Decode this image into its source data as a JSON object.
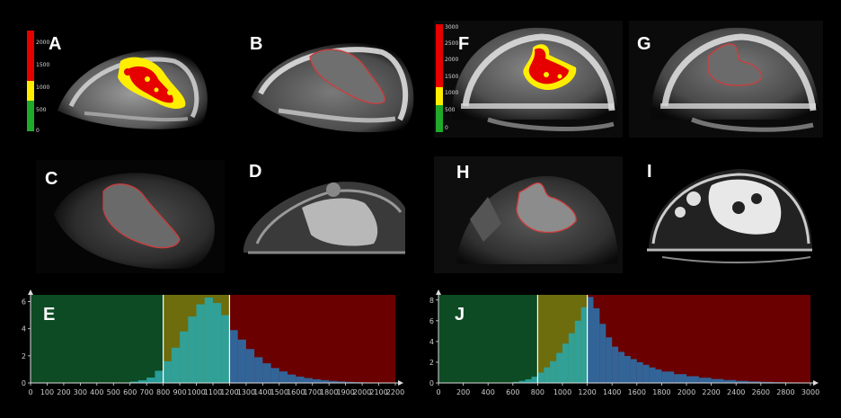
{
  "panels": {
    "A": "A",
    "B": "B",
    "C": "C",
    "D": "D",
    "E": "E",
    "F": "F",
    "G": "G",
    "H": "H",
    "I": "I",
    "J": "J"
  },
  "colors": {
    "red": "#e60000",
    "yellow": "#ffee00",
    "green": "#1faa2a",
    "contour": "#d23a3a",
    "hist_green_region": "#0c4b23",
    "hist_yellow_region": "#6d6d0e",
    "hist_red_region": "#6a0000",
    "hist_bar_teal": "#2aa5a5",
    "hist_bar_blue": "#2e6fa8"
  },
  "scale_left": {
    "ticks": [
      "2000",
      "1500",
      "1000",
      "500",
      "0"
    ]
  },
  "scale_right": {
    "ticks": [
      "3000",
      "2500",
      "2000",
      "1500",
      "1000",
      "500",
      "0"
    ]
  },
  "chart_data": [
    {
      "type": "bar",
      "panel": "E",
      "x_ticks": [
        "0",
        "100",
        "200",
        "300",
        "400",
        "500",
        "600",
        "700",
        "800",
        "900",
        "1000",
        "1100",
        "1200",
        "1300",
        "1400",
        "1500",
        "1600",
        "1700",
        "1800",
        "1900",
        "2000",
        "2100",
        "2200"
      ],
      "y_ticks": [
        "0",
        "2",
        "4",
        "6"
      ],
      "xlim": [
        0,
        2200
      ],
      "ylim": [
        0,
        6.5
      ],
      "thresholds": [
        800,
        1200
      ],
      "x": [
        600,
        650,
        700,
        750,
        800,
        850,
        900,
        950,
        1000,
        1050,
        1100,
        1150,
        1200,
        1250,
        1300,
        1350,
        1400,
        1450,
        1500,
        1550,
        1600,
        1650,
        1700,
        1750,
        1800,
        1850,
        1900,
        1950,
        2000,
        2050,
        2100,
        2150
      ],
      "values": [
        0.1,
        0.2,
        0.4,
        0.9,
        1.6,
        2.6,
        3.8,
        4.9,
        5.8,
        6.3,
        5.9,
        5.0,
        3.9,
        3.2,
        2.5,
        1.9,
        1.45,
        1.1,
        0.85,
        0.62,
        0.47,
        0.36,
        0.27,
        0.2,
        0.15,
        0.11,
        0.08,
        0.06,
        0.04,
        0.03,
        0.02,
        0.01
      ]
    },
    {
      "type": "bar",
      "panel": "J",
      "x_ticks": [
        "0",
        "200",
        "400",
        "600",
        "800",
        "1000",
        "1200",
        "1400",
        "1600",
        "1800",
        "2000",
        "2200",
        "2400",
        "2600",
        "2800",
        "3000"
      ],
      "y_ticks": [
        "0",
        "2",
        "4",
        "6",
        "8"
      ],
      "xlim": [
        0,
        3000
      ],
      "ylim": [
        0,
        8.5
      ],
      "thresholds": [
        800,
        1200
      ],
      "x": [
        600,
        650,
        700,
        750,
        800,
        850,
        900,
        950,
        1000,
        1050,
        1100,
        1150,
        1200,
        1250,
        1300,
        1350,
        1400,
        1450,
        1500,
        1550,
        1600,
        1650,
        1700,
        1750,
        1800,
        1900,
        2000,
        2100,
        2200,
        2300,
        2400,
        2500,
        2600,
        2700,
        2800,
        2900
      ],
      "values": [
        0.1,
        0.2,
        0.35,
        0.6,
        1.0,
        1.5,
        2.1,
        2.9,
        3.8,
        4.8,
        6.0,
        7.3,
        8.3,
        7.2,
        5.7,
        4.4,
        3.5,
        3.0,
        2.6,
        2.3,
        2.0,
        1.75,
        1.5,
        1.3,
        1.1,
        0.85,
        0.65,
        0.5,
        0.38,
        0.28,
        0.2,
        0.14,
        0.1,
        0.07,
        0.05,
        0.03
      ]
    }
  ]
}
